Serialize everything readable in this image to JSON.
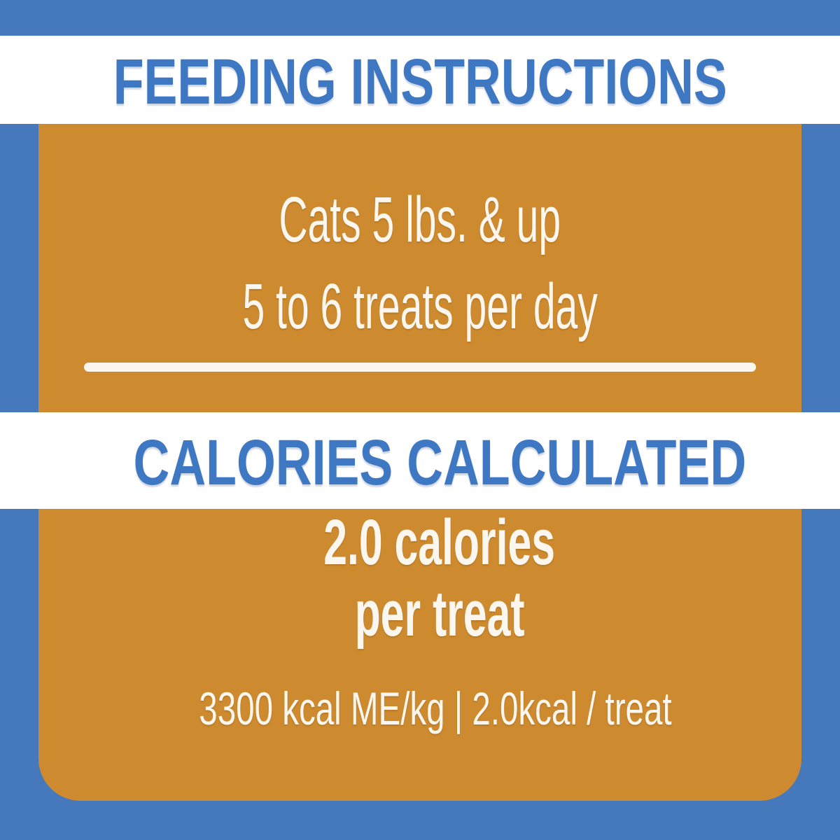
{
  "colors": {
    "background_blue": "#4678BC",
    "panel_orange": "#CD8A2F",
    "band_white": "#FFFFFF",
    "heading_blue": "#3E78C3",
    "text_cream": "#FBF7EE"
  },
  "feeding_band": {
    "title": "FEEDING INSTRUCTIONS"
  },
  "feeding_section": {
    "line1": "Cats 5 lbs. & up",
    "line2": "5 to 6 treats per day"
  },
  "calories_band": {
    "title": "CALORIES CALCULATED"
  },
  "calories_section": {
    "line1": "2.0 calories",
    "line2": "per treat",
    "detail": "3300 kcal ME/kg | 2.0kcal / treat"
  }
}
